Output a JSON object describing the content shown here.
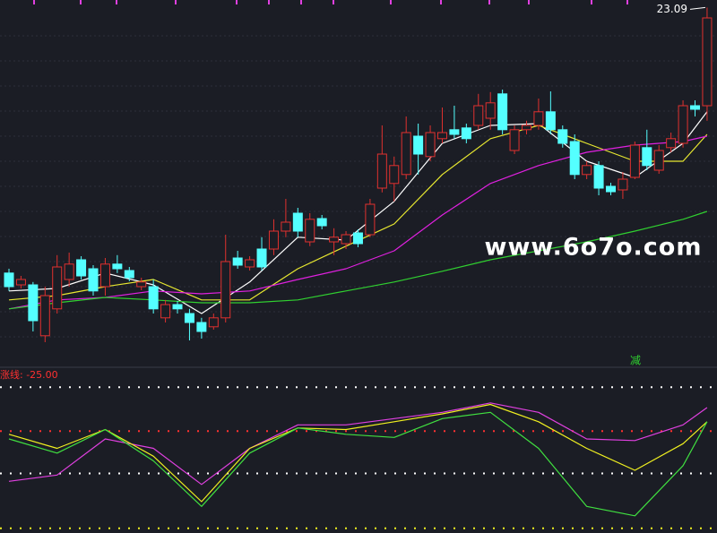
{
  "chart_data": [
    {
      "type": "candlestick",
      "ylim": [
        13.05,
        23.3
      ],
      "up_color": "#e0312f",
      "down_color": "#54ffff",
      "open": [
        15.68,
        15.35,
        15.35,
        13.93,
        14.68,
        15.5,
        16.05,
        15.8,
        15.3,
        15.93,
        15.75,
        15.3,
        15.3,
        14.43,
        14.8,
        14.55,
        14.3,
        14.18,
        14.43,
        16.1,
        15.85,
        16.35,
        16.35,
        16.85,
        17.35,
        16.55,
        17.2,
        16.55,
        16.5,
        16.8,
        16.75,
        18.05,
        18.18,
        18.43,
        19.5,
        18.93,
        19.43,
        19.68,
        19.73,
        19.8,
        20.0,
        20.68,
        19.1,
        19.68,
        19.8,
        20.18,
        19.68,
        19.35,
        18.43,
        18.68,
        18.1,
        18.0,
        18.35,
        19.18,
        18.55,
        19.18,
        19.3,
        20.35,
        20.35
      ],
      "close": [
        15.3,
        15.5,
        14.35,
        15.05,
        15.85,
        15.93,
        15.6,
        15.18,
        15.93,
        15.8,
        15.55,
        15.43,
        14.68,
        14.8,
        14.68,
        14.3,
        14.05,
        14.43,
        16.0,
        15.9,
        16.05,
        15.85,
        16.85,
        17.1,
        16.85,
        17.18,
        17.0,
        16.68,
        16.75,
        16.5,
        17.6,
        19.0,
        18.68,
        19.6,
        19.0,
        19.6,
        19.6,
        19.55,
        19.43,
        20.35,
        20.43,
        19.68,
        19.68,
        19.8,
        20.18,
        19.68,
        19.3,
        18.43,
        18.68,
        18.05,
        17.95,
        18.3,
        19.25,
        18.68,
        19.1,
        19.43,
        20.35,
        20.25,
        22.8
      ],
      "high": [
        15.8,
        15.6,
        15.43,
        15.3,
        16.18,
        16.25,
        16.15,
        15.9,
        16.1,
        16.18,
        15.85,
        15.55,
        15.5,
        14.93,
        14.9,
        14.68,
        14.43,
        14.55,
        16.75,
        16.3,
        16.15,
        16.68,
        17.18,
        17.75,
        17.5,
        17.35,
        17.3,
        16.93,
        16.85,
        16.9,
        17.75,
        19.8,
        18.93,
        20.05,
        19.85,
        19.8,
        20.3,
        20.35,
        19.85,
        20.68,
        20.73,
        20.8,
        19.8,
        19.93,
        20.55,
        20.75,
        19.8,
        19.55,
        18.8,
        18.8,
        18.2,
        18.5,
        19.35,
        19.68,
        19.25,
        19.6,
        20.5,
        20.5,
        23.09
      ],
      "low": [
        15.18,
        15.25,
        14.05,
        13.75,
        14.55,
        15.3,
        15.5,
        15.05,
        15.05,
        15.68,
        15.45,
        15.2,
        14.55,
        14.3,
        14.55,
        13.8,
        13.85,
        14.1,
        14.3,
        15.8,
        15.75,
        15.75,
        16.18,
        16.68,
        16.68,
        16.43,
        16.9,
        16.18,
        16.35,
        16.4,
        16.68,
        17.93,
        17.68,
        18.3,
        18.43,
        18.8,
        19.3,
        19.43,
        19.3,
        19.68,
        19.68,
        19.55,
        19.0,
        19.55,
        19.68,
        19.55,
        19.18,
        18.3,
        18.3,
        17.85,
        17.85,
        17.75,
        18.3,
        18.55,
        18.45,
        19.05,
        19.18,
        20.05,
        19.93
      ],
      "series": [
        {
          "color": "#ffffff",
          "x": [
            0,
            4,
            8,
            12,
            16,
            20,
            24,
            28,
            32,
            36,
            40,
            44,
            48,
            52,
            56,
            58
          ],
          "values": [
            15.18,
            15.25,
            15.68,
            15.35,
            14.55,
            15.43,
            16.68,
            16.6,
            17.68,
            19.3,
            19.8,
            19.85,
            18.8,
            18.35,
            19.3,
            20.18
          ]
        },
        {
          "color": "#e8e830",
          "x": [
            0,
            4,
            8,
            12,
            16,
            20,
            24,
            28,
            32,
            36,
            40,
            44,
            48,
            52,
            56,
            58
          ],
          "values": [
            14.93,
            15.05,
            15.3,
            15.5,
            14.93,
            14.93,
            15.8,
            16.43,
            17.05,
            18.43,
            19.43,
            19.8,
            19.3,
            18.8,
            18.8,
            19.55
          ]
        },
        {
          "color": "#e020e0",
          "x": [
            0,
            4,
            8,
            12,
            16,
            20,
            24,
            28,
            32,
            36,
            40,
            44,
            48,
            52,
            56,
            58
          ],
          "values": [
            14.68,
            14.93,
            15.0,
            15.18,
            15.1,
            15.18,
            15.5,
            15.8,
            16.3,
            17.3,
            18.18,
            18.68,
            19.05,
            19.25,
            19.35,
            19.5
          ]
        },
        {
          "color": "#30d030",
          "x": [
            0,
            4,
            8,
            12,
            16,
            20,
            24,
            28,
            32,
            36,
            40,
            44,
            48,
            52,
            56,
            58
          ],
          "values": [
            14.68,
            14.85,
            15.0,
            14.93,
            14.85,
            14.85,
            14.93,
            15.18,
            15.43,
            15.73,
            16.05,
            16.3,
            16.55,
            16.85,
            17.18,
            17.4
          ]
        }
      ],
      "annotations": [
        "减"
      ],
      "watermark": "www.6o7o.com"
    },
    {
      "type": "line",
      "title": "涨线: -25.00",
      "ylim": [
        0,
        100
      ],
      "levels": [
        {
          "value": 93,
          "color": "#ffffff"
        },
        {
          "value": 65,
          "color": "#ff3030"
        },
        {
          "value": 38,
          "color": "#ffffff"
        },
        {
          "value": 3,
          "color": "#f0f020"
        }
      ],
      "series": [
        {
          "color": "#e040e0",
          "x": [
            0,
            4,
            8,
            12,
            16,
            20,
            24,
            28,
            32,
            36,
            40,
            44,
            48,
            52,
            56,
            58
          ],
          "values": [
            33,
            37,
            60,
            54,
            31,
            54,
            69,
            69,
            73,
            77,
            83,
            77,
            60,
            59,
            69,
            80
          ]
        },
        {
          "color": "#f0f020",
          "x": [
            0,
            4,
            8,
            12,
            16,
            20,
            24,
            28,
            32,
            36,
            40,
            44,
            48,
            52,
            56,
            58
          ],
          "values": [
            63,
            54,
            66,
            49,
            20,
            54,
            67,
            66,
            71,
            76,
            82,
            71,
            54,
            40,
            57,
            71
          ]
        },
        {
          "color": "#40e040",
          "x": [
            0,
            4,
            8,
            12,
            16,
            20,
            24,
            28,
            32,
            36,
            40,
            44,
            48,
            52,
            56,
            58
          ],
          "values": [
            60,
            51,
            66,
            46,
            17,
            51,
            67,
            63,
            61,
            73,
            77,
            54,
            17,
            11,
            43,
            71
          ]
        }
      ]
    }
  ]
}
